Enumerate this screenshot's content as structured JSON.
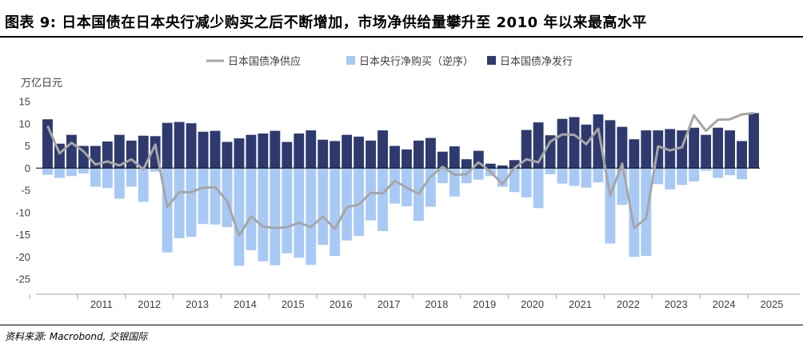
{
  "header": {
    "title": "图表 9: 日本国债在日本央行减少购买之后不断增加，市场净供给量攀升至 2010 年以来最高水平"
  },
  "footer": {
    "source": "资料来源: Macrobond, 交银国际"
  },
  "chart_data": {
    "type": "bar",
    "unit_label": "万亿日元",
    "ylim": [
      -25,
      15
    ],
    "yticks": [
      15,
      10,
      5,
      0,
      -5,
      -10,
      -15,
      -20,
      -25
    ],
    "x_tick_labels": [
      "2011",
      "2012",
      "2013",
      "2014",
      "2015",
      "2016",
      "2017",
      "2018",
      "2019",
      "2020",
      "2021",
      "2022",
      "2023",
      "2024",
      "2025"
    ],
    "quarters": [
      "2010Q2",
      "2010Q3",
      "2010Q4",
      "2011Q1",
      "2011Q2",
      "2011Q3",
      "2011Q4",
      "2012Q1",
      "2012Q2",
      "2012Q3",
      "2012Q4",
      "2013Q1",
      "2013Q2",
      "2013Q3",
      "2013Q4",
      "2014Q1",
      "2014Q2",
      "2014Q3",
      "2014Q4",
      "2015Q1",
      "2015Q2",
      "2015Q3",
      "2015Q4",
      "2016Q1",
      "2016Q2",
      "2016Q3",
      "2016Q4",
      "2017Q1",
      "2017Q2",
      "2017Q3",
      "2017Q4",
      "2018Q1",
      "2018Q2",
      "2018Q3",
      "2018Q4",
      "2019Q1",
      "2019Q2",
      "2019Q3",
      "2019Q4",
      "2020Q1",
      "2020Q2",
      "2020Q3",
      "2020Q4",
      "2021Q1",
      "2021Q2",
      "2021Q3",
      "2021Q4",
      "2022Q1",
      "2022Q2",
      "2022Q3",
      "2022Q4",
      "2023Q1",
      "2023Q2",
      "2023Q3",
      "2023Q4",
      "2024Q1",
      "2024Q2",
      "2024Q3",
      "2024Q4",
      "2025Q1"
    ],
    "legend": [
      "日本国债净供应",
      "日本央行净购买（逆序）",
      "日本国债净发行"
    ],
    "colors": {
      "supply": "#a6a6a6",
      "purchase": "#a9c9f5",
      "issuance": "#2e3a6e"
    },
    "series": [
      {
        "name": "日本国债净发行",
        "kind": "bar",
        "values": [
          11.0,
          5.5,
          7.5,
          5.0,
          5.0,
          6.0,
          7.5,
          6.2,
          7.3,
          7.2,
          10.2,
          10.4,
          10.1,
          8.2,
          8.4,
          5.9,
          6.7,
          7.5,
          7.8,
          8.4,
          5.9,
          7.8,
          8.5,
          6.4,
          6.1,
          7.5,
          7.1,
          6.2,
          8.5,
          5.0,
          4.2,
          6.2,
          6.8,
          3.7,
          4.9,
          2.0,
          3.9,
          1.0,
          0.6,
          1.8,
          8.6,
          10.3,
          7.4,
          11.1,
          11.5,
          9.8,
          12.1,
          10.8,
          9.3,
          6.5,
          8.5,
          8.5,
          8.8,
          8.5,
          9.1,
          7.5,
          9.1,
          8.5,
          6.1,
          12.4
        ]
      },
      {
        "name": "日本央行净购买（逆序）",
        "kind": "bar",
        "values": [
          -1.5,
          -2.2,
          -1.8,
          -1.2,
          -4.2,
          -4.5,
          -6.9,
          -4.2,
          -7.6,
          -0.8,
          -19.0,
          -15.8,
          -15.5,
          -12.6,
          -12.7,
          -13.3,
          -22.0,
          -18.5,
          -21.0,
          -21.9,
          -19.2,
          -20.2,
          -21.8,
          -17.3,
          -19.8,
          -16.3,
          -15.3,
          -11.8,
          -14.2,
          -8.0,
          -8.6,
          -11.9,
          -8.7,
          -3.4,
          -6.4,
          -3.4,
          -2.6,
          -1.8,
          -4.2,
          -5.4,
          -6.6,
          -9.0,
          -1.4,
          -3.5,
          -4.0,
          -4.4,
          -3.2,
          -17.0,
          -8.3,
          -20.0,
          -19.8,
          -3.6,
          -4.8,
          -3.8,
          -3.0,
          -0.6,
          -2.2,
          -1.6,
          -2.5,
          0.0
        ]
      },
      {
        "name": "日本国债净供应",
        "kind": "line",
        "values": [
          9.5,
          3.3,
          5.7,
          3.8,
          0.8,
          1.5,
          0.6,
          2.0,
          -0.3,
          5.3,
          -8.8,
          -5.4,
          -5.4,
          -4.4,
          -4.3,
          -7.4,
          -15.2,
          -10.9,
          -13.2,
          -13.5,
          -13.3,
          -12.3,
          -13.3,
          -10.9,
          -13.7,
          -8.8,
          -8.2,
          -5.6,
          -5.7,
          -2.9,
          -4.4,
          -5.8,
          -1.9,
          0.3,
          -1.5,
          -1.4,
          1.3,
          -0.8,
          -3.6,
          0.0,
          2.0,
          1.3,
          6.0,
          7.6,
          7.5,
          5.4,
          8.9,
          -6.2,
          1.0,
          -13.5,
          -11.3,
          4.9,
          4.0,
          4.7,
          11.9,
          8.4,
          10.9,
          11.0,
          12.1,
          12.4
        ]
      }
    ]
  }
}
